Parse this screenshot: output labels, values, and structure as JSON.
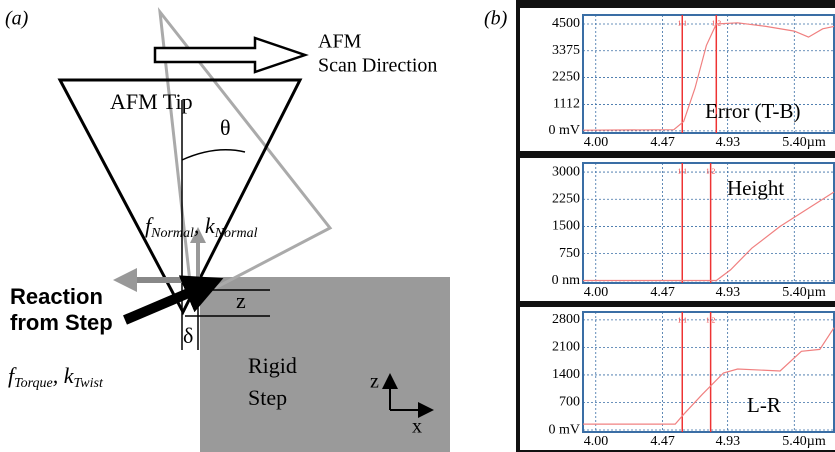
{
  "diagram": {
    "panel_label": "(a)",
    "scan_label": [
      "AFM",
      "Scan Direction"
    ],
    "tip_label": "AFM Tip",
    "angle_label": "θ",
    "reaction_label": [
      "Reaction",
      "from Step"
    ],
    "normal_label": {
      "f": "f",
      "f_sub": "Normal",
      "sep": ",",
      "k": "k",
      "k_sub": "Normal"
    },
    "torque_label": {
      "f": "f",
      "f_sub": "Torque",
      "sep": ",",
      "k": "k",
      "k_sub": "Twist"
    },
    "z_label": "z",
    "delta_label": "δ",
    "step_label": [
      "Rigid",
      "Step"
    ],
    "axis_labels": {
      "z": "z",
      "x": "x"
    }
  },
  "panel_b_label": "(b)",
  "chart_data": [
    {
      "type": "line",
      "annotation": "Error (T-B)",
      "color": "#f08080",
      "x": [
        3.91,
        4.55,
        4.62,
        4.7,
        4.78,
        4.85,
        5.0,
        5.2,
        5.4,
        5.5,
        5.6,
        5.68
      ],
      "values": [
        30,
        50,
        400,
        1800,
        3600,
        4500,
        4550,
        4400,
        4200,
        3950,
        4300,
        4400
      ],
      "xlim": [
        3.91,
        5.68
      ],
      "ylim": [
        -90,
        4880
      ],
      "xticks": [
        {
          "value": 4,
          "label": "4.00"
        },
        {
          "value": 4.47,
          "label": "4.47"
        },
        {
          "value": 4.93,
          "label": "4.93"
        },
        {
          "value": 5.4,
          "label": "5.40µm"
        }
      ],
      "yticks": [
        {
          "value": 0,
          "label": "0 mV"
        },
        1112,
        2250,
        3375,
        4500
      ],
      "cursors": [
        {
          "x": 4.61,
          "label": "1-1"
        },
        {
          "x": 4.85,
          "label": "1-2"
        }
      ]
    },
    {
      "type": "line",
      "annotation": "Height",
      "color": "#f08080",
      "x": [
        3.91,
        4.85,
        4.95,
        5.1,
        5.3,
        5.5,
        5.68
      ],
      "values": [
        10,
        10,
        300,
        900,
        1500,
        2000,
        2450
      ],
      "xlim": [
        3.91,
        5.68
      ],
      "ylim": [
        -60,
        3250
      ],
      "xticks": [
        {
          "value": 4,
          "label": "4.00"
        },
        {
          "value": 4.47,
          "label": "4.47"
        },
        {
          "value": 4.93,
          "label": "4.93"
        },
        {
          "value": 5.4,
          "label": "5.40µm"
        }
      ],
      "yticks": [
        {
          "value": 0,
          "label": "0 nm"
        },
        750,
        1500,
        2250,
        3000
      ],
      "cursors": [
        {
          "x": 4.61,
          "label": "1-1"
        },
        {
          "x": 4.81,
          "label": "1-2"
        }
      ]
    },
    {
      "type": "line",
      "annotation": "L-R",
      "color": "#f08080",
      "x": [
        3.91,
        4.56,
        4.62,
        4.75,
        4.9,
        5.0,
        5.3,
        5.45,
        5.58,
        5.68
      ],
      "values": [
        150,
        150,
        400,
        900,
        1450,
        1550,
        1500,
        2000,
        2050,
        2600
      ],
      "xlim": [
        3.91,
        5.68
      ],
      "ylim": [
        -50,
        3000
      ],
      "xticks": [
        {
          "value": 4,
          "label": "4.00"
        },
        {
          "value": 4.47,
          "label": "4.47"
        },
        {
          "value": 4.93,
          "label": "4.93"
        },
        {
          "value": 5.4,
          "label": "5.40µm"
        }
      ],
      "yticks": [
        {
          "value": 0,
          "label": "0 mV"
        },
        700,
        1400,
        2100,
        2800
      ],
      "cursors": [
        {
          "x": 4.61,
          "label": "1-1"
        },
        {
          "x": 4.81,
          "label": "1-2"
        }
      ]
    }
  ]
}
